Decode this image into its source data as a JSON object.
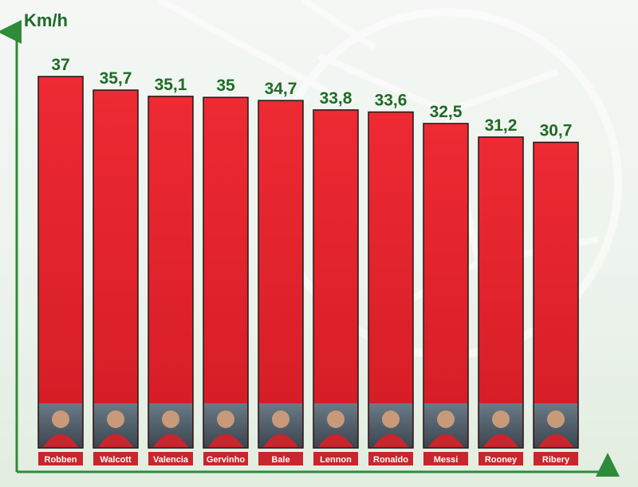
{
  "chart_data": {
    "type": "bar",
    "ylabel": "Km/h",
    "xlabel": "",
    "title": "",
    "categories": [
      "Robben",
      "Walcott",
      "Valencia",
      "Gervinho",
      "Bale",
      "Lennon",
      "Ronaldo",
      "Messi",
      "Rooney",
      "Ribery"
    ],
    "values": [
      37,
      35.7,
      35.1,
      35,
      34.7,
      33.8,
      33.6,
      32.5,
      31.2,
      30.7
    ],
    "data_labels": [
      "37",
      "35,7",
      "35,1",
      "35",
      "34,7",
      "33,8",
      "33,6",
      "32,5",
      "31,2",
      "30,7"
    ],
    "ylim": [
      0,
      37
    ],
    "grid": false,
    "legend": "none",
    "colors": {
      "bar": "#e3212b",
      "bar_dark": "#a8141b",
      "label_box": "#c8252c",
      "axis": "#2e8b3a",
      "value_text": "#1f6b26"
    }
  }
}
